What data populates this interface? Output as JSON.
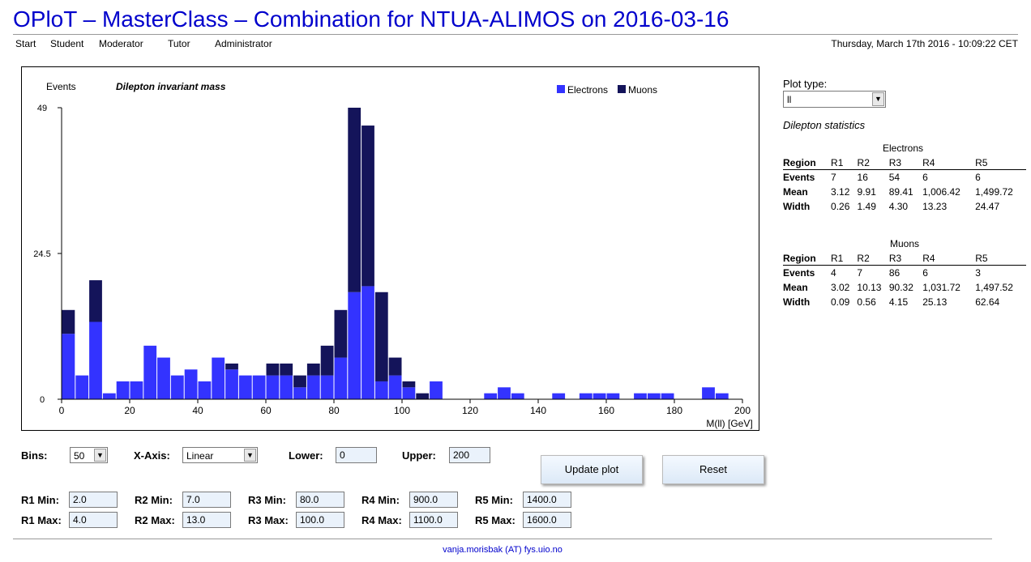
{
  "header": {
    "title": "OPloT – MasterClass – Combination for NTUA-ALIMOS on 2016-03-16",
    "datetime": "Thursday, March 17th 2016 - 10:09:22 CET"
  },
  "nav": [
    "Start",
    "Student",
    "Moderator",
    "Tutor",
    "Administrator"
  ],
  "chart_data": {
    "type": "bar",
    "stacked": true,
    "title": "Dilepton invariant mass",
    "ylabel": "Events",
    "xlabel": "M(ll) [GeV]",
    "xlim": [
      0,
      200
    ],
    "ylim": [
      0,
      49
    ],
    "yticks": [
      0,
      24.5,
      49
    ],
    "xticks": [
      0,
      20,
      40,
      60,
      80,
      100,
      120,
      140,
      160,
      180,
      200
    ],
    "legend_position": "top-right",
    "bin_width": 4,
    "x": [
      0,
      4,
      8,
      12,
      16,
      20,
      24,
      28,
      32,
      36,
      40,
      44,
      48,
      52,
      56,
      60,
      64,
      68,
      72,
      76,
      80,
      84,
      88,
      92,
      96,
      100,
      104,
      108,
      112,
      116,
      120,
      124,
      128,
      132,
      136,
      140,
      144,
      148,
      152,
      156,
      160,
      164,
      168,
      172,
      176,
      180,
      184,
      188,
      192,
      196
    ],
    "series": [
      {
        "name": "Electrons",
        "color": "#3333ff",
        "values": [
          11,
          4,
          13,
          1,
          3,
          3,
          9,
          7,
          4,
          5,
          3,
          7,
          5,
          4,
          4,
          4,
          4,
          2,
          4,
          4,
          7,
          18,
          19,
          3,
          4,
          2,
          0,
          3,
          0,
          0,
          0,
          1,
          2,
          1,
          0,
          0,
          1,
          0,
          1,
          1,
          1,
          0,
          1,
          1,
          1,
          0,
          0,
          2,
          1,
          0
        ]
      },
      {
        "name": "Muons",
        "color": "#14145a",
        "values": [
          4,
          0,
          7,
          0,
          0,
          0,
          0,
          0,
          0,
          0,
          0,
          0,
          1,
          0,
          0,
          2,
          2,
          2,
          2,
          5,
          8,
          31,
          27,
          15,
          3,
          1,
          1,
          0,
          0,
          0,
          0,
          0,
          0,
          0,
          0,
          0,
          0,
          0,
          0,
          0,
          0,
          0,
          0,
          0,
          0,
          0,
          0,
          0,
          0,
          0
        ]
      }
    ]
  },
  "side": {
    "plot_type_label": "Plot type:",
    "plot_type_value": "ll",
    "stats_title": "Dilepton statistics",
    "electrons": {
      "caption": "Electrons",
      "header": [
        "Region",
        "R1",
        "R2",
        "R3",
        "R4",
        "R5"
      ],
      "rows": [
        [
          "Events",
          "7",
          "16",
          "54",
          "6",
          "6"
        ],
        [
          "Mean",
          "3.12",
          "9.91",
          "89.41",
          "1,006.42",
          "1,499.72"
        ],
        [
          "Width",
          "0.26",
          "1.49",
          "4.30",
          "13.23",
          "24.47"
        ]
      ]
    },
    "muons": {
      "caption": "Muons",
      "header": [
        "Region",
        "R1",
        "R2",
        "R3",
        "R4",
        "R5"
      ],
      "rows": [
        [
          "Events",
          "4",
          "7",
          "86",
          "6",
          "3"
        ],
        [
          "Mean",
          "3.02",
          "10.13",
          "90.32",
          "1,031.72",
          "1,497.52"
        ],
        [
          "Width",
          "0.09",
          "0.56",
          "4.15",
          "25.13",
          "62.64"
        ]
      ]
    }
  },
  "controls": {
    "bins_label": "Bins:",
    "bins_value": "50",
    "xaxis_label": "X-Axis:",
    "xaxis_value": "Linear",
    "lower_label": "Lower:",
    "lower_value": "0",
    "upper_label": "Upper:",
    "upper_value": "200",
    "update_label": "Update plot",
    "reset_label": "Reset",
    "regions": [
      {
        "min_label": "R1 Min:",
        "min": "2.0",
        "max_label": "R1 Max:",
        "max": "4.0"
      },
      {
        "min_label": "R2 Min:",
        "min": "7.0",
        "max_label": "R2 Max:",
        "max": "13.0"
      },
      {
        "min_label": "R3 Min:",
        "min": "80.0",
        "max_label": "R3 Max:",
        "max": "100.0"
      },
      {
        "min_label": "R4 Min:",
        "min": "900.0",
        "max_label": "R4 Max:",
        "max": "1100.0"
      },
      {
        "min_label": "R5 Min:",
        "min": "1400.0",
        "max_label": "R5 Max:",
        "max": "1600.0"
      }
    ]
  },
  "footer": {
    "contact": "vanja.morisbak (AT) fys.uio.no"
  }
}
